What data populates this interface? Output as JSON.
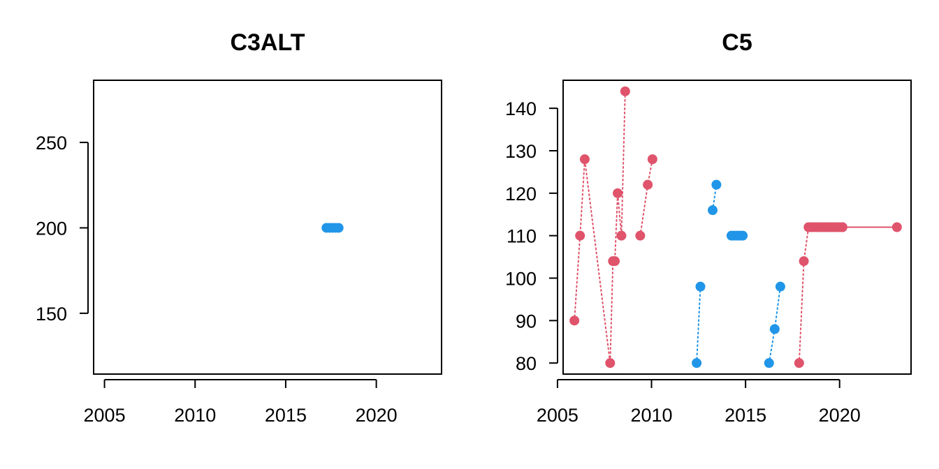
{
  "chart_data": [
    {
      "type": "scatter",
      "title": "C3ALT",
      "xlabel": "",
      "ylabel": "",
      "xlim": [
        2004.4,
        2023.6
      ],
      "ylim": [
        114.4,
        286.4
      ],
      "x_ticks": [
        2005,
        2010,
        2015,
        2020
      ],
      "y_ticks": [
        150,
        200,
        250
      ],
      "grid": false,
      "series": [
        {
          "color": "#2196E8",
          "line": "dotted",
          "x": [
            2017.25,
            2017.42,
            2017.58,
            2017.75,
            2017.92
          ],
          "y": [
            200,
            200,
            200,
            200,
            200
          ]
        }
      ]
    },
    {
      "type": "scatter",
      "title": "C5",
      "xlabel": "",
      "ylabel": "",
      "xlim": [
        2005.3,
        2023.8
      ],
      "ylim": [
        77.4,
        146.6
      ],
      "x_ticks": [
        2005,
        2010,
        2015,
        2020
      ],
      "y_ticks": [
        80,
        90,
        100,
        110,
        120,
        130,
        140
      ],
      "grid": false,
      "series": [
        {
          "color": "#DF536B",
          "line": "dotted",
          "x": [
            2005.9,
            2006.2,
            2006.45,
            2007.8,
            2007.95,
            2008.05,
            2008.2,
            2008.4,
            2008.6
          ],
          "y": [
            90,
            110,
            128,
            80,
            104,
            104,
            120,
            110,
            144
          ]
        },
        {
          "color": "#DF536B",
          "line": "dotted",
          "x": [
            2009.4,
            2009.8,
            2010.05
          ],
          "y": [
            110,
            122,
            128
          ]
        },
        {
          "color": "#2196E8",
          "line": "dotted",
          "x": [
            2012.4,
            2012.6
          ],
          "y": [
            80,
            98
          ]
        },
        {
          "color": "#2196E8",
          "line": "dotted",
          "x": [
            2013.25,
            2013.45
          ],
          "y": [
            116,
            122
          ]
        },
        {
          "color": "#2196E8",
          "line": "dotted",
          "x": [
            2014.25,
            2014.4,
            2014.55,
            2014.7,
            2014.85
          ],
          "y": [
            110,
            110,
            110,
            110,
            110
          ]
        },
        {
          "color": "#2196E8",
          "line": "dotted",
          "x": [
            2016.25,
            2016.55,
            2016.85
          ],
          "y": [
            80,
            88,
            98
          ]
        },
        {
          "color": "#DF536B",
          "line": "dotted",
          "x": [
            2017.85,
            2018.1,
            2018.35,
            2018.5,
            2018.65,
            2018.8,
            2018.95,
            2019.1,
            2019.25,
            2019.4,
            2019.55,
            2019.7,
            2019.85,
            2020.0,
            2020.15
          ],
          "y": [
            80,
            104,
            112,
            112,
            112,
            112,
            112,
            112,
            112,
            112,
            112,
            112,
            112,
            112,
            112
          ]
        },
        {
          "color": "#DF536B",
          "line": "solid",
          "x": [
            2020.15,
            2023.05
          ],
          "y": [
            112,
            112
          ]
        }
      ]
    }
  ]
}
